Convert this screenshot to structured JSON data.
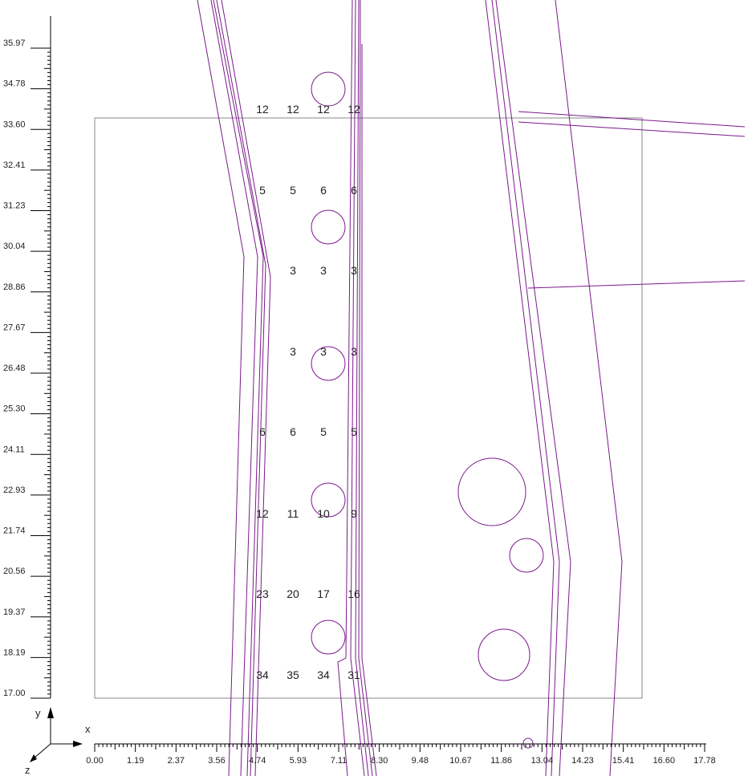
{
  "colors": {
    "background": "#ffffff",
    "geometry": "#7a1a8a",
    "frame": "#888888",
    "axes": "#000000",
    "text": "#222222"
  },
  "axes": {
    "x_label": "x",
    "y_label": "y",
    "z_label": "z",
    "x_ticks": [
      "0.00",
      "1.19",
      "2.37",
      "3.56",
      "4.74",
      "5.93",
      "7.11",
      "8.30",
      "9.48",
      "10.67",
      "11.86",
      "13.04",
      "14.23",
      "15.41",
      "16.60",
      "17.78"
    ],
    "y_ticks": [
      "17.00",
      "18.19",
      "19.37",
      "20.56",
      "21.74",
      "22.93",
      "24.11",
      "25.30",
      "26.48",
      "27.67",
      "28.86",
      "30.04",
      "31.23",
      "32.41",
      "33.60",
      "34.78",
      "35.97"
    ]
  },
  "value_grid": {
    "rows": [
      [
        "12",
        "12",
        "12",
        "12"
      ],
      [
        "5",
        "5",
        "6",
        "6"
      ],
      [
        "",
        "3",
        "3",
        "3"
      ],
      [
        "",
        "3",
        "3",
        "3"
      ],
      [
        "6",
        "6",
        "5",
        "5"
      ],
      [
        "12",
        "11",
        "10",
        "9"
      ],
      [
        "23",
        "20",
        "17",
        "16"
      ],
      [
        "34",
        "35",
        "34",
        "31"
      ]
    ]
  }
}
